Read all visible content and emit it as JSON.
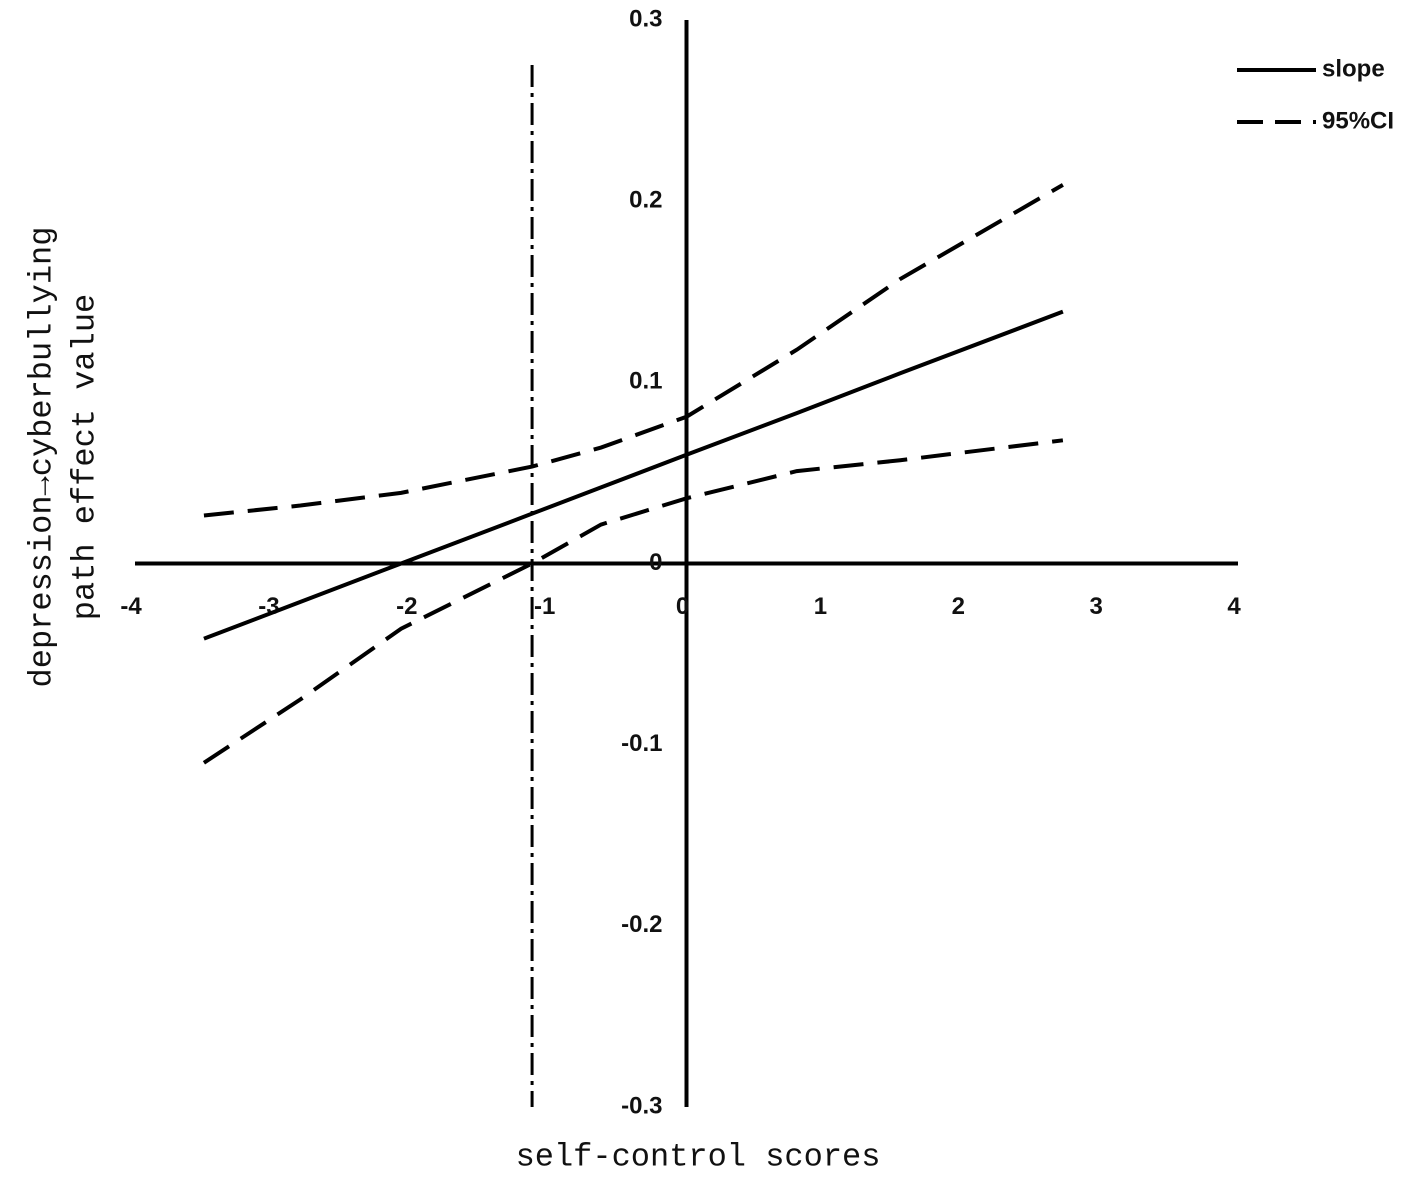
{
  "chart_data": {
    "type": "line",
    "x_label": "self-control scores",
    "y_label": [
      "depression→cyberbullying",
      "path effect value"
    ],
    "xlim": [
      -4,
      4
    ],
    "ylim": [
      -0.3,
      0.3
    ],
    "xticks": [
      -4,
      -3,
      -2,
      -1,
      0,
      1,
      2,
      3,
      4
    ],
    "yticks": [
      -0.3,
      -0.2,
      -0.1,
      0,
      0.1,
      0.2,
      0.3
    ],
    "grid": false,
    "legend": "top-right",
    "vline": -1.12,
    "x": [
      -3.5,
      -2.8,
      -2.07,
      -1.12,
      -0.62,
      0,
      0.8,
      1.55,
      2.73
    ],
    "series": [
      {
        "name": "slope",
        "color": "#000000",
        "style": "solid",
        "values": [
          -0.0415,
          -0.0212,
          0,
          0.0275,
          0.042,
          0.06,
          0.083,
          0.105,
          0.139
        ]
      },
      {
        "name": "95%CI",
        "color": "#000000",
        "style": "dashed",
        "upper": [
          0.0265,
          0.032,
          0.039,
          0.0535,
          0.064,
          0.081,
          0.118,
          0.157,
          0.209
        ],
        "lower": [
          -0.11,
          -0.075,
          -0.036,
          0,
          0.0215,
          0.036,
          0.051,
          0.057,
          0.068
        ]
      }
    ]
  }
}
